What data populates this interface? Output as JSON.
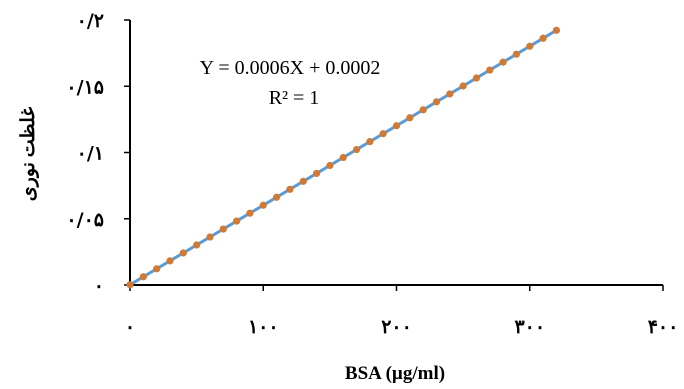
{
  "chart_data": {
    "type": "scatter",
    "title": "",
    "xlabel": "BSA (µg/ml)",
    "ylabel": "غلظت نوری",
    "xlim": [
      0,
      400
    ],
    "ylim": [
      0,
      0.2
    ],
    "x_ticks": [
      0,
      100,
      200,
      300,
      400
    ],
    "x_tick_labels": [
      "٠",
      "١٠٠",
      "٢٠٠",
      "٣٠٠",
      "۴٠٠"
    ],
    "y_ticks": [
      0,
      0.05,
      0.1,
      0.15,
      0.2
    ],
    "y_tick_labels": [
      "٠",
      "٠/٠۵",
      "٠/١",
      "٠/١۵",
      "٠/٢"
    ],
    "grid": false,
    "trendline": {
      "equation": "Y = 0.0006X + 0.0002",
      "r_squared": "R² = 1",
      "slope": 0.0006,
      "intercept": 0.0002,
      "color": "#5b9bd5"
    },
    "marker_color": "#d07a35",
    "series": [
      {
        "x": [
          0,
          10,
          20,
          30,
          40,
          50,
          60,
          70,
          80,
          90,
          100,
          110,
          120,
          130,
          140,
          150,
          160,
          170,
          180,
          190,
          200,
          210,
          220,
          230,
          240,
          250,
          260,
          270,
          280,
          290,
          300,
          310,
          320
        ],
        "y": [
          0.0002,
          0.0062,
          0.0122,
          0.0182,
          0.0242,
          0.0302,
          0.0362,
          0.0422,
          0.0482,
          0.0542,
          0.0602,
          0.0662,
          0.0722,
          0.0782,
          0.0842,
          0.0902,
          0.0962,
          0.1022,
          0.1082,
          0.1142,
          0.1202,
          0.1262,
          0.1322,
          0.1382,
          0.1442,
          0.1502,
          0.1562,
          0.1622,
          0.1682,
          0.1742,
          0.1802,
          0.1862,
          0.1922
        ]
      }
    ]
  }
}
